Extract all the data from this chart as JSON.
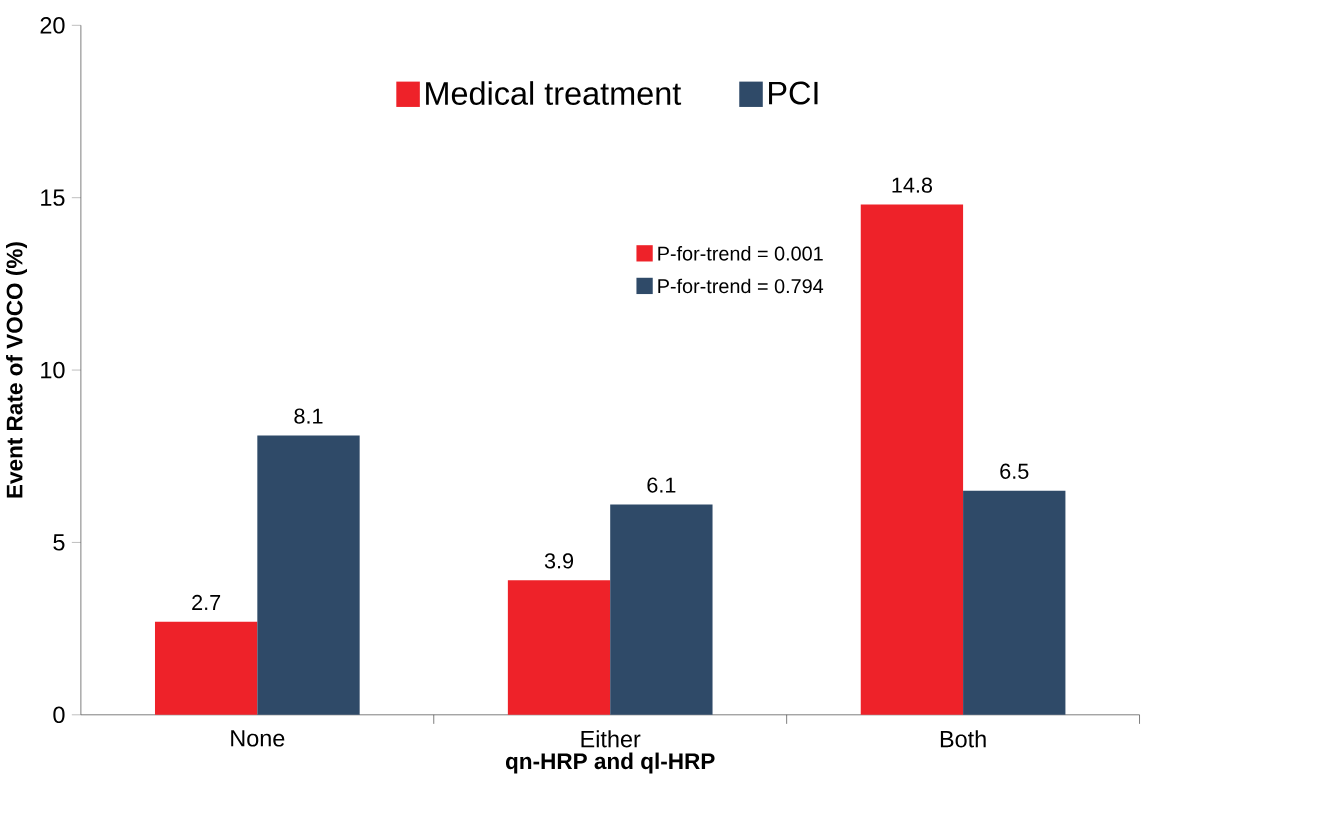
{
  "chart_data": {
    "type": "bar",
    "categories": [
      "None",
      "Either",
      "Both"
    ],
    "series": [
      {
        "name": "Medical treatment",
        "color": "#ee2229",
        "values": [
          2.7,
          3.9,
          14.8
        ]
      },
      {
        "name": "PCI",
        "color": "#2f4a68",
        "values": [
          8.1,
          6.1,
          6.5
        ]
      }
    ],
    "xlabel": "qn-HRP and ql-HRP",
    "ylabel": "Event Rate of VOCO (%)",
    "ylim": [
      0,
      20
    ],
    "yticks": [
      0,
      5,
      10,
      15,
      20
    ],
    "annotations": [
      "P-for-trend = 0.001",
      "P-for-trend = 0.794"
    ],
    "data_labels": true,
    "legend": "top",
    "grid": false
  }
}
